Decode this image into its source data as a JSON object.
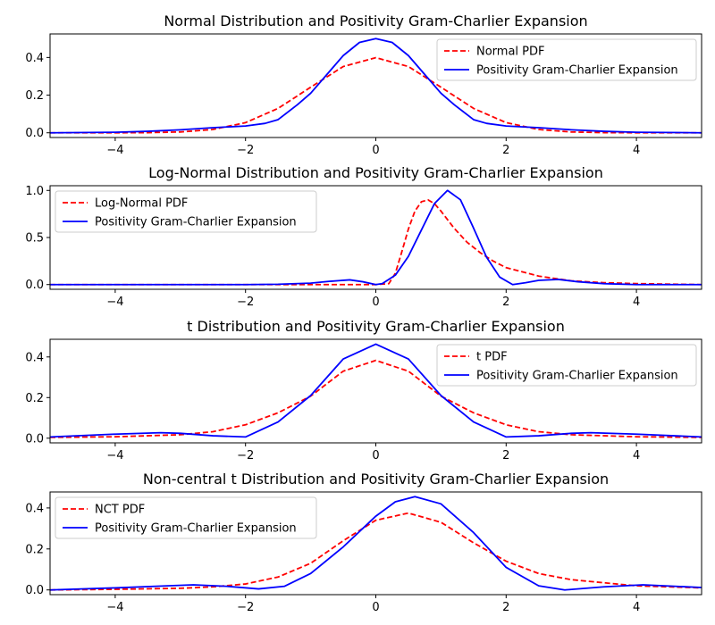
{
  "chart_data": [
    {
      "type": "line",
      "title": "Normal Distribution and Positivity Gram-Charlier Expansion",
      "xlabel": "",
      "ylabel": "",
      "xlim": [
        -5,
        5
      ],
      "ylim": [
        -0.025,
        0.525
      ],
      "xticks": [
        -4,
        -2,
        0,
        2,
        4
      ],
      "xtick_labels": [
        "−4",
        "−2",
        "0",
        "2",
        "4"
      ],
      "yticks": [
        0.0,
        0.2,
        0.4
      ],
      "ytick_labels": [
        "0.0",
        "0.2",
        "0.4"
      ],
      "grid": false,
      "legend_position": "top-right",
      "series": [
        {
          "name": "Normal PDF",
          "color": "#ff0000",
          "dash": "dashed",
          "x": [
            -5,
            -4,
            -3.5,
            -3,
            -2.5,
            -2,
            -1.5,
            -1,
            -0.5,
            0,
            0.5,
            1,
            1.5,
            2,
            2.5,
            3,
            3.5,
            4,
            5
          ],
          "y": [
            0.0,
            0.0001,
            0.0009,
            0.0044,
            0.0175,
            0.054,
            0.1295,
            0.242,
            0.352,
            0.399,
            0.352,
            0.242,
            0.1295,
            0.054,
            0.0175,
            0.0044,
            0.0009,
            0.0001,
            0.0
          ]
        },
        {
          "name": "Positivity Gram-Charlier Expansion",
          "color": "#0000ff",
          "dash": "solid",
          "x": [
            -5,
            -4,
            -3.5,
            -3,
            -2.5,
            -2,
            -1.7,
            -1.5,
            -1.2,
            -1,
            -0.7,
            -0.5,
            -0.25,
            0,
            0.25,
            0.5,
            0.7,
            1,
            1.2,
            1.5,
            1.7,
            2,
            2.5,
            3,
            3.5,
            4,
            5
          ],
          "y": [
            0.0,
            0.003,
            0.008,
            0.016,
            0.027,
            0.036,
            0.05,
            0.07,
            0.15,
            0.21,
            0.33,
            0.41,
            0.48,
            0.5,
            0.48,
            0.41,
            0.33,
            0.21,
            0.15,
            0.07,
            0.05,
            0.036,
            0.027,
            0.016,
            0.008,
            0.003,
            0.0
          ]
        }
      ]
    },
    {
      "type": "line",
      "title": "Log-Normal Distribution and Positivity Gram-Charlier Expansion",
      "xlabel": "",
      "ylabel": "",
      "xlim": [
        -5,
        5
      ],
      "ylim": [
        -0.05,
        1.05
      ],
      "xticks": [
        -4,
        -2,
        0,
        2,
        4
      ],
      "xtick_labels": [
        "−4",
        "−2",
        "0",
        "2",
        "4"
      ],
      "yticks": [
        0.0,
        0.5,
        1.0
      ],
      "ytick_labels": [
        "0.0",
        "0.5",
        "1.0"
      ],
      "grid": false,
      "legend_position": "top-left",
      "series": [
        {
          "name": "Log-Normal PDF",
          "color": "#ff0000",
          "dash": "dashed",
          "x": [
            -5,
            -1,
            0,
            0.2,
            0.3,
            0.4,
            0.5,
            0.6,
            0.7,
            0.8,
            0.9,
            1,
            1.2,
            1.4,
            1.6,
            1.8,
            2,
            2.5,
            3,
            3.5,
            4,
            5
          ],
          "y": [
            0,
            0,
            0,
            0.01,
            0.12,
            0.35,
            0.59,
            0.78,
            0.88,
            0.9,
            0.86,
            0.78,
            0.6,
            0.45,
            0.34,
            0.25,
            0.18,
            0.09,
            0.04,
            0.02,
            0.01,
            0.0
          ]
        },
        {
          "name": "Positivity Gram-Charlier Expansion",
          "color": "#0000ff",
          "dash": "solid",
          "x": [
            -5,
            -2,
            -1.5,
            -1,
            -0.7,
            -0.4,
            -0.2,
            0,
            0.1,
            0.3,
            0.5,
            0.7,
            0.9,
            1.1,
            1.3,
            1.5,
            1.7,
            1.9,
            2.1,
            2.3,
            2.5,
            2.8,
            3.1,
            3.5,
            4,
            5
          ],
          "y": [
            0,
            0,
            0.003,
            0.015,
            0.035,
            0.05,
            0.03,
            0.0,
            0.01,
            0.1,
            0.3,
            0.58,
            0.86,
            1.0,
            0.9,
            0.6,
            0.29,
            0.08,
            0.0,
            0.02,
            0.045,
            0.055,
            0.03,
            0.01,
            0.0,
            0.0
          ]
        }
      ]
    },
    {
      "type": "line",
      "title": "t Distribution and Positivity Gram-Charlier Expansion",
      "xlabel": "",
      "ylabel": "",
      "xlim": [
        -5,
        5
      ],
      "ylim": [
        -0.023,
        0.487
      ],
      "xticks": [
        -4,
        -2,
        0,
        2,
        4
      ],
      "xtick_labels": [
        "−4",
        "−2",
        "0",
        "2",
        "4"
      ],
      "yticks": [
        0.0,
        0.2,
        0.4
      ],
      "ytick_labels": [
        "0.0",
        "0.2",
        "0.4"
      ],
      "grid": false,
      "legend_position": "top-right",
      "series": [
        {
          "name": "t PDF",
          "color": "#ff0000",
          "dash": "dashed",
          "x": [
            -5,
            -4,
            -3,
            -2.5,
            -2,
            -1.5,
            -1,
            -0.5,
            0,
            0.5,
            1,
            1.5,
            2,
            2.5,
            3,
            4,
            5
          ],
          "y": [
            0.004,
            0.007,
            0.017,
            0.032,
            0.066,
            0.125,
            0.207,
            0.33,
            0.383,
            0.33,
            0.207,
            0.125,
            0.066,
            0.032,
            0.017,
            0.007,
            0.004
          ]
        },
        {
          "name": "Positivity Gram-Charlier Expansion",
          "color": "#0000ff",
          "dash": "solid",
          "x": [
            -5,
            -4,
            -3.3,
            -3,
            -2.5,
            -2,
            -1.5,
            -1,
            -0.5,
            0,
            0.5,
            1,
            1.5,
            2,
            2.5,
            3,
            3.3,
            4,
            5
          ],
          "y": [
            0.006,
            0.02,
            0.027,
            0.024,
            0.012,
            0.006,
            0.08,
            0.21,
            0.39,
            0.463,
            0.39,
            0.21,
            0.08,
            0.006,
            0.012,
            0.024,
            0.027,
            0.02,
            0.006
          ]
        }
      ]
    },
    {
      "type": "line",
      "title": "Non-central t Distribution and Positivity Gram-Charlier Expansion",
      "xlabel": "",
      "ylabel": "",
      "xlim": [
        -5,
        5
      ],
      "ylim": [
        -0.023,
        0.478
      ],
      "xticks": [
        -4,
        -2,
        0,
        2,
        4
      ],
      "xtick_labels": [
        "−4",
        "−2",
        "0",
        "2",
        "4"
      ],
      "yticks": [
        0.0,
        0.2,
        0.4
      ],
      "ytick_labels": [
        "0.0",
        "0.2",
        "0.4"
      ],
      "grid": false,
      "legend_position": "top-left",
      "series": [
        {
          "name": "NCT PDF",
          "color": "#ff0000",
          "dash": "dashed",
          "x": [
            -5,
            -4,
            -3,
            -2.5,
            -2,
            -1.5,
            -1,
            -0.5,
            0,
            0.5,
            1,
            1.5,
            2,
            2.5,
            3,
            4,
            5
          ],
          "y": [
            0.0,
            0.003,
            0.008,
            0.015,
            0.029,
            0.063,
            0.13,
            0.24,
            0.34,
            0.375,
            0.33,
            0.23,
            0.14,
            0.08,
            0.05,
            0.02,
            0.01
          ]
        },
        {
          "name": "Positivity Gram-Charlier Expansion",
          "color": "#0000ff",
          "dash": "solid",
          "x": [
            -5,
            -4,
            -3.2,
            -2.8,
            -2.3,
            -1.8,
            -1.4,
            -1,
            -0.5,
            0,
            0.3,
            0.6,
            1,
            1.5,
            2,
            2.5,
            2.9,
            3.5,
            4.1,
            5
          ],
          "y": [
            0.0,
            0.01,
            0.02,
            0.025,
            0.018,
            0.005,
            0.018,
            0.08,
            0.21,
            0.36,
            0.43,
            0.455,
            0.42,
            0.28,
            0.11,
            0.02,
            0.0,
            0.015,
            0.025,
            0.012
          ]
        }
      ]
    }
  ]
}
